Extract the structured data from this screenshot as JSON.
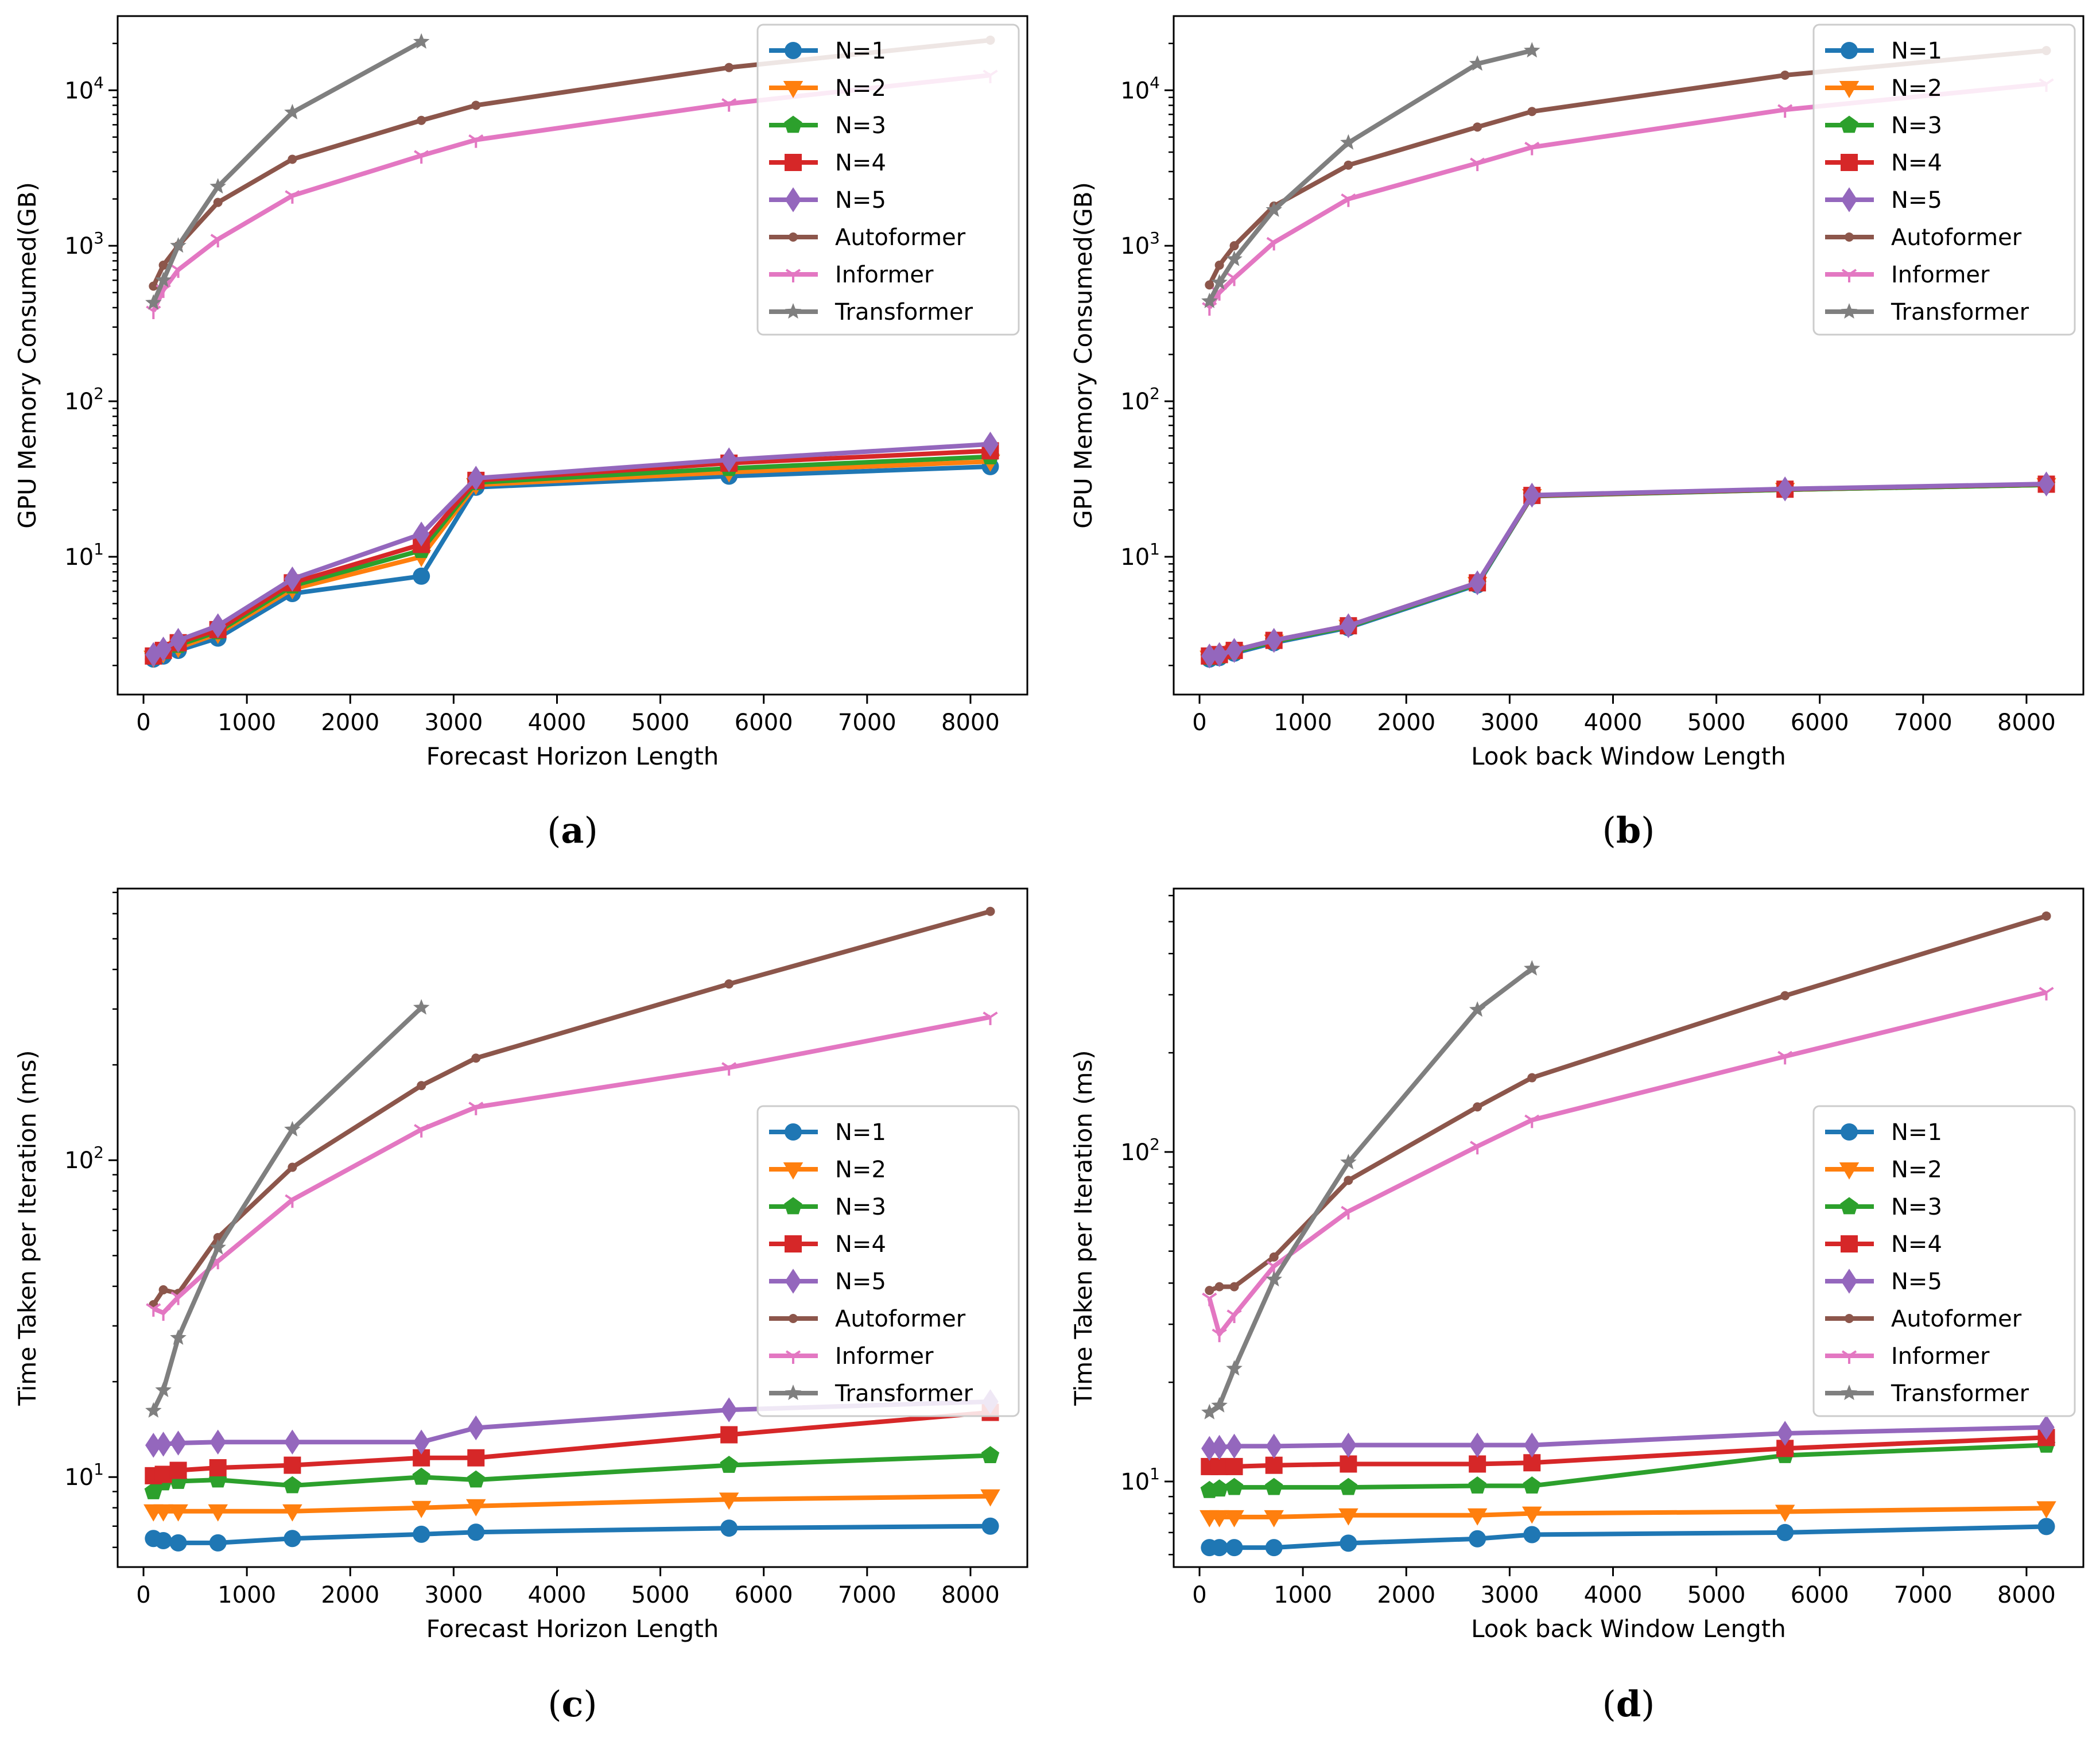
{
  "series_styles": [
    {
      "name": "N=1",
      "color": "#1f77b4",
      "marker": "circle"
    },
    {
      "name": "N=2",
      "color": "#ff7f0e",
      "marker": "triangle-down"
    },
    {
      "name": "N=3",
      "color": "#2ca02c",
      "marker": "pentagon"
    },
    {
      "name": "N=4",
      "color": "#d62728",
      "marker": "square"
    },
    {
      "name": "N=5",
      "color": "#9467bd",
      "marker": "diamond"
    },
    {
      "name": "Autoformer",
      "color": "#8c564b",
      "marker": "dot"
    },
    {
      "name": "Informer",
      "color": "#e377c2",
      "marker": "tri"
    },
    {
      "name": "Transformer",
      "color": "#7f7f7f",
      "marker": "star"
    }
  ],
  "chart_data": [
    {
      "id": "a",
      "caption_letter": "a",
      "type": "line",
      "xlabel": "Forecast Horizon Length",
      "ylabel": "GPU Memory Consumed(GB)",
      "yscale": "log",
      "xlim": [
        -250,
        8550
      ],
      "ylim": [
        1.3,
        30000
      ],
      "xticks": [
        0,
        1000,
        2000,
        3000,
        4000,
        5000,
        6000,
        7000,
        8000
      ],
      "yticks": [
        10,
        100,
        1000,
        10000
      ],
      "legend": "top-right",
      "series": [
        {
          "name": "N=1",
          "x": [
            96,
            192,
            336,
            720,
            1440,
            2688,
            3216,
            5664,
            8192
          ],
          "y": [
            2.2,
            2.3,
            2.5,
            3.0,
            5.8,
            7.5,
            28,
            33,
            38
          ]
        },
        {
          "name": "N=2",
          "x": [
            96,
            192,
            336,
            720,
            1440,
            2688,
            3216,
            5664,
            8192
          ],
          "y": [
            2.25,
            2.4,
            2.6,
            3.2,
            6.2,
            10,
            29,
            35,
            41
          ]
        },
        {
          "name": "N=3",
          "x": [
            96,
            192,
            336,
            720,
            1440,
            2688,
            3216,
            5664,
            8192
          ],
          "y": [
            2.3,
            2.45,
            2.7,
            3.3,
            6.5,
            11,
            30,
            37,
            44
          ]
        },
        {
          "name": "N=4",
          "x": [
            96,
            192,
            336,
            720,
            1440,
            2688,
            3216,
            5664,
            8192
          ],
          "y": [
            2.3,
            2.5,
            2.8,
            3.4,
            6.8,
            12,
            31,
            40,
            48
          ]
        },
        {
          "name": "N=5",
          "x": [
            96,
            192,
            336,
            720,
            1440,
            2688,
            3216,
            5664,
            8192
          ],
          "y": [
            2.35,
            2.55,
            2.9,
            3.6,
            7.2,
            14,
            32,
            42,
            53
          ]
        },
        {
          "name": "Autoformer",
          "x": [
            96,
            192,
            336,
            720,
            1440,
            2688,
            3216,
            5664,
            8192
          ],
          "y": [
            550,
            750,
            1000,
            1900,
            3600,
            6400,
            8000,
            14000,
            21000
          ]
        },
        {
          "name": "Informer",
          "x": [
            96,
            192,
            336,
            720,
            1440,
            2688,
            3216,
            5664,
            8192
          ],
          "y": [
            380,
            520,
            700,
            1100,
            2100,
            3800,
            4800,
            8200,
            12500
          ]
        },
        {
          "name": "Transformer",
          "x": [
            96,
            192,
            336,
            720,
            1440,
            2688
          ],
          "y": [
            430,
            600,
            1000,
            2400,
            7200,
            20500
          ]
        }
      ]
    },
    {
      "id": "b",
      "caption_letter": "b",
      "type": "line",
      "xlabel": "Look back Window Length",
      "ylabel": "GPU Memory Consumed(GB)",
      "yscale": "log",
      "xlim": [
        -250,
        8550
      ],
      "ylim": [
        1.3,
        30000
      ],
      "xticks": [
        0,
        1000,
        2000,
        3000,
        4000,
        5000,
        6000,
        7000,
        8000
      ],
      "yticks": [
        10,
        100,
        1000,
        10000
      ],
      "legend": "top-right",
      "series": [
        {
          "name": "N=1",
          "x": [
            96,
            192,
            336,
            720,
            1440,
            2688,
            3216,
            5664,
            8192
          ],
          "y": [
            2.2,
            2.25,
            2.4,
            2.8,
            3.5,
            6.6,
            24.5,
            27,
            29
          ]
        },
        {
          "name": "N=2",
          "x": [
            96,
            192,
            336,
            720,
            1440,
            2688,
            3216,
            5664,
            8192
          ],
          "y": [
            2.25,
            2.3,
            2.45,
            2.85,
            3.55,
            6.7,
            24.6,
            27,
            29
          ]
        },
        {
          "name": "N=3",
          "x": [
            96,
            192,
            336,
            720,
            1440,
            2688,
            3216,
            5664,
            8192
          ],
          "y": [
            2.25,
            2.3,
            2.45,
            2.85,
            3.55,
            6.7,
            24.7,
            27,
            29
          ]
        },
        {
          "name": "N=4",
          "x": [
            96,
            192,
            336,
            720,
            1440,
            2688,
            3216,
            5664,
            8192
          ],
          "y": [
            2.3,
            2.35,
            2.5,
            2.9,
            3.6,
            6.8,
            24.8,
            27.2,
            29.3
          ]
        },
        {
          "name": "N=5",
          "x": [
            96,
            192,
            336,
            720,
            1440,
            2688,
            3216,
            5664,
            8192
          ],
          "y": [
            2.3,
            2.35,
            2.5,
            2.9,
            3.6,
            6.8,
            24.9,
            27.3,
            29.4
          ]
        },
        {
          "name": "Autoformer",
          "x": [
            96,
            192,
            336,
            720,
            1440,
            2688,
            3216,
            5664,
            8192
          ],
          "y": [
            560,
            750,
            1000,
            1800,
            3300,
            5800,
            7300,
            12500,
            18000
          ]
        },
        {
          "name": "Informer",
          "x": [
            96,
            192,
            336,
            720,
            1440,
            2688,
            3216,
            5664,
            8192
          ],
          "y": [
            400,
            500,
            620,
            1050,
            2000,
            3400,
            4300,
            7500,
            11000
          ]
        },
        {
          "name": "Transformer",
          "x": [
            96,
            192,
            336,
            720,
            1440,
            2688,
            3216
          ],
          "y": [
            440,
            580,
            820,
            1700,
            4600,
            14800,
            18000
          ]
        }
      ]
    },
    {
      "id": "c",
      "caption_letter": "c",
      "type": "line",
      "xlabel": "Forecast Horizon Length",
      "ylabel": "Time Taken per Iteration (ms)",
      "yscale": "log",
      "xlim": [
        -250,
        8550
      ],
      "ylim": [
        5.2,
        720
      ],
      "xticks": [
        0,
        1000,
        2000,
        3000,
        4000,
        5000,
        6000,
        7000,
        8000
      ],
      "yticks": [
        10,
        100
      ],
      "legend": "center-right",
      "series": [
        {
          "name": "N=1",
          "x": [
            96,
            192,
            336,
            720,
            1440,
            2688,
            3216,
            5664,
            8192
          ],
          "y": [
            6.4,
            6.3,
            6.2,
            6.2,
            6.4,
            6.6,
            6.7,
            6.9,
            7.0
          ]
        },
        {
          "name": "N=2",
          "x": [
            96,
            192,
            336,
            720,
            1440,
            2688,
            3216,
            5664,
            8192
          ],
          "y": [
            7.8,
            7.8,
            7.8,
            7.8,
            7.8,
            8.0,
            8.1,
            8.5,
            8.7
          ]
        },
        {
          "name": "N=3",
          "x": [
            96,
            192,
            336,
            720,
            1440,
            2688,
            3216,
            5664,
            8192
          ],
          "y": [
            9.0,
            9.6,
            9.7,
            9.8,
            9.4,
            10.0,
            9.8,
            10.9,
            11.7
          ]
        },
        {
          "name": "N=4",
          "x": [
            96,
            192,
            336,
            720,
            1440,
            2688,
            3216,
            5664,
            8192
          ],
          "y": [
            10.1,
            10.2,
            10.5,
            10.7,
            10.9,
            11.5,
            11.5,
            13.6,
            16.0
          ]
        },
        {
          "name": "N=5",
          "x": [
            96,
            192,
            336,
            720,
            1440,
            2688,
            3216,
            5664,
            8192
          ],
          "y": [
            12.6,
            12.7,
            12.8,
            12.9,
            12.9,
            12.9,
            14.3,
            16.3,
            17.3
          ]
        },
        {
          "name": "Autoformer",
          "x": [
            96,
            192,
            336,
            720,
            1440,
            2688,
            3216,
            5664,
            8192
          ],
          "y": [
            35,
            39,
            38,
            57,
            95,
            172,
            210,
            360,
            610
          ]
        },
        {
          "name": "Informer",
          "x": [
            96,
            192,
            336,
            720,
            1440,
            2688,
            3216,
            5664,
            8192
          ],
          "y": [
            34,
            33,
            37,
            48,
            75,
            125,
            147,
            196,
            283
          ]
        },
        {
          "name": "Transformer",
          "x": [
            96,
            192,
            336,
            720,
            1440,
            2688
          ],
          "y": [
            16.2,
            18.8,
            27.5,
            53,
            125,
            303
          ]
        }
      ]
    },
    {
      "id": "d",
      "caption_letter": "d",
      "type": "line",
      "xlabel": "Look back Window Length",
      "ylabel": "Time Taken per Iteration (ms)",
      "yscale": "log",
      "xlim": [
        -250,
        8550
      ],
      "ylim": [
        5.5,
        630
      ],
      "xticks": [
        0,
        1000,
        2000,
        3000,
        4000,
        5000,
        6000,
        7000,
        8000
      ],
      "yticks": [
        10,
        100
      ],
      "legend": "center-right",
      "series": [
        {
          "name": "N=1",
          "x": [
            96,
            192,
            336,
            720,
            1440,
            2688,
            3216,
            5664,
            8192
          ],
          "y": [
            6.3,
            6.3,
            6.3,
            6.3,
            6.5,
            6.7,
            6.9,
            7.0,
            7.3
          ]
        },
        {
          "name": "N=2",
          "x": [
            96,
            192,
            336,
            720,
            1440,
            2688,
            3216,
            5664,
            8192
          ],
          "y": [
            7.8,
            7.8,
            7.8,
            7.8,
            7.9,
            7.9,
            8.0,
            8.1,
            8.3
          ]
        },
        {
          "name": "N=3",
          "x": [
            96,
            192,
            336,
            720,
            1440,
            2688,
            3216,
            5664,
            8192
          ],
          "y": [
            9.4,
            9.5,
            9.6,
            9.6,
            9.6,
            9.7,
            9.7,
            12.0,
            12.9
          ]
        },
        {
          "name": "N=4",
          "x": [
            96,
            192,
            336,
            720,
            1440,
            2688,
            3216,
            5664,
            8192
          ],
          "y": [
            11.1,
            11.1,
            11.1,
            11.2,
            11.3,
            11.3,
            11.4,
            12.6,
            13.6
          ]
        },
        {
          "name": "N=5",
          "x": [
            96,
            192,
            336,
            720,
            1440,
            2688,
            3216,
            5664,
            8192
          ],
          "y": [
            12.6,
            12.7,
            12.8,
            12.8,
            12.9,
            12.9,
            12.9,
            14.0,
            14.6
          ]
        },
        {
          "name": "Autoformer",
          "x": [
            96,
            192,
            336,
            720,
            1440,
            2688,
            3216,
            5664,
            8192
          ],
          "y": [
            38,
            39,
            39,
            48,
            82,
            137,
            168,
            298,
            520
          ]
        },
        {
          "name": "Informer",
          "x": [
            96,
            192,
            336,
            720,
            1440,
            2688,
            3216,
            5664,
            8192
          ],
          "y": [
            36,
            28,
            32,
            45,
            66,
            104,
            125,
            195,
            305
          ]
        },
        {
          "name": "Transformer",
          "x": [
            96,
            192,
            336,
            720,
            1440,
            2688,
            3216
          ],
          "y": [
            16.2,
            17.0,
            22,
            41,
            93,
            270,
            360
          ]
        }
      ]
    }
  ]
}
